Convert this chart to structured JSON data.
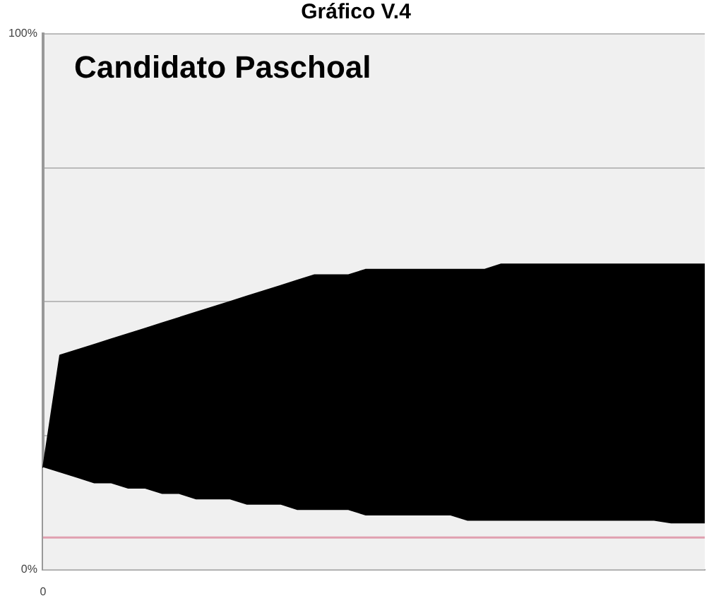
{
  "chart_data": {
    "type": "area",
    "title": "Gráfico V.4",
    "subtitle": "Candidato Paschoal",
    "stacked": true,
    "categories": [
      "0",
      null,
      null,
      null,
      null,
      null,
      null,
      null,
      null,
      null,
      null,
      null,
      null,
      null,
      null,
      null,
      null,
      null,
      null,
      null,
      null,
      null,
      null,
      null,
      null,
      null,
      null,
      null,
      null,
      null,
      null,
      null,
      null,
      null,
      null,
      null,
      null,
      null,
      null,
      null
    ],
    "series": [
      {
        "color": "#f0f0f0",
        "values": [
          19,
          18,
          17,
          16,
          16,
          15,
          15,
          14,
          14,
          13,
          13,
          13,
          12,
          12,
          12,
          11,
          11,
          11,
          11,
          10,
          10,
          10,
          10,
          10,
          10,
          9,
          9,
          9,
          9,
          9,
          9,
          9,
          9,
          9,
          9,
          9,
          9,
          8.5,
          8.5,
          8.5
        ]
      },
      {
        "color": "#000000",
        "values": [
          0,
          22,
          24,
          26,
          27,
          29,
          30,
          32,
          33,
          35,
          36,
          37,
          39,
          40,
          41,
          43,
          44,
          44,
          44,
          46,
          46,
          46,
          46,
          46,
          46,
          47,
          47,
          48,
          48,
          48,
          48,
          48,
          48,
          48,
          48,
          48,
          48,
          48.5,
          48.5,
          48.5
        ]
      }
    ],
    "ylim": [
      0,
      100
    ],
    "yticks": [
      {
        "value": 0,
        "label": "0%"
      },
      {
        "value": 25,
        "label": null
      },
      {
        "value": 50,
        "label": null
      },
      {
        "value": 75,
        "label": null
      },
      {
        "value": 100,
        "label": "100%"
      }
    ],
    "grid": "y",
    "ref_lines": [
      {
        "axis": "y",
        "value": 6,
        "color": "#e0a0b0"
      }
    ]
  }
}
